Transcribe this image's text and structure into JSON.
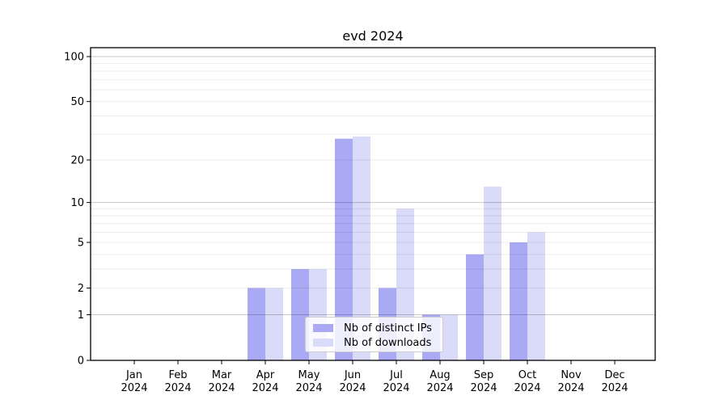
{
  "title": "evd 2024",
  "colors": {
    "bar_dark": "#a9a9f4",
    "bar_light": "#dadaf9",
    "spine": "#000000",
    "grid_major": "rgba(0,0,0,0.22)",
    "grid_minor": "rgba(0,0,0,0.08)",
    "text": "#000000",
    "legend_border": "#cccccc",
    "legend_bg": "rgba(255,255,255,0.8)"
  },
  "chart_data": {
    "type": "bar",
    "title": "evd 2024",
    "categories": [
      "Jan",
      "Feb",
      "Mar",
      "Apr",
      "May",
      "Jun",
      "Jul",
      "Aug",
      "Sep",
      "Oct",
      "Nov",
      "Dec"
    ],
    "year": "2024",
    "series": [
      {
        "name": "Nb of distinct IPs",
        "color": "#a9a9f4",
        "values": [
          0,
          0,
          0,
          2,
          3,
          28,
          2,
          1,
          4,
          5,
          0,
          0
        ]
      },
      {
        "name": "Nb of downloads",
        "color": "#dadaf9",
        "values": [
          0,
          0,
          0,
          2,
          3,
          29,
          9,
          1,
          13,
          6,
          0,
          0
        ]
      }
    ],
    "yscale": "log1p",
    "yticks": [
      0,
      1,
      2,
      5,
      10,
      20,
      50,
      100
    ],
    "ylim": [
      0,
      115
    ],
    "grid": {
      "major": [
        1,
        10,
        100
      ],
      "minor": [
        2,
        3,
        4,
        5,
        6,
        7,
        8,
        9,
        20,
        30,
        40,
        50,
        60,
        70,
        80,
        90
      ]
    },
    "legend_position": "bottom-center",
    "xlabel": "",
    "ylabel": ""
  }
}
